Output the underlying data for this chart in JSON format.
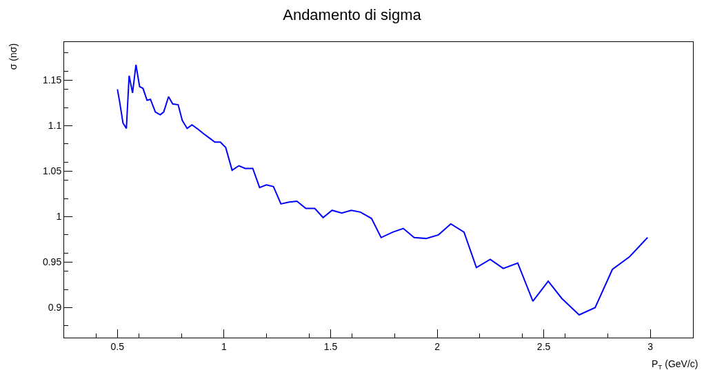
{
  "chart_data": {
    "type": "line",
    "title": "Andamento di sigma",
    "xlabel": "P$_{T}$ (GeV/c)",
    "ylabel": "σ (nσ)",
    "x": [
      0.5,
      0.51,
      0.526,
      0.542,
      0.555,
      0.571,
      0.587,
      0.604,
      0.62,
      0.639,
      0.655,
      0.678,
      0.701,
      0.717,
      0.74,
      0.759,
      0.785,
      0.804,
      0.827,
      0.85,
      0.879,
      0.905,
      0.934,
      0.957,
      0.983,
      1.008,
      1.038,
      1.07,
      1.099,
      1.135,
      1.167,
      1.199,
      1.232,
      1.267,
      1.306,
      1.342,
      1.384,
      1.426,
      1.465,
      1.507,
      1.552,
      1.597,
      1.64,
      1.692,
      1.737,
      1.792,
      1.841,
      1.892,
      1.948,
      2.006,
      2.064,
      2.126,
      2.184,
      2.249,
      2.31,
      2.378,
      2.449,
      2.521,
      2.585,
      2.666,
      2.741,
      2.822,
      2.903,
      2.987
    ],
    "series": [
      {
        "color": "#0000ff",
        "values": [
          1.14,
          1.127,
          1.103,
          1.097,
          1.155,
          1.136,
          1.167,
          1.143,
          1.141,
          1.128,
          1.129,
          1.115,
          1.112,
          1.115,
          1.132,
          1.124,
          1.123,
          1.106,
          1.097,
          1.101,
          1.096,
          1.091,
          1.086,
          1.082,
          1.082,
          1.076,
          1.051,
          1.056,
          1.053,
          1.053,
          1.032,
          1.035,
          1.033,
          1.014,
          1.016,
          1.017,
          1.009,
          1.009,
          0.999,
          1.007,
          1.004,
          1.007,
          1.005,
          0.998,
          0.977,
          0.983,
          0.987,
          0.977,
          0.976,
          0.98,
          0.992,
          0.983,
          0.944,
          0.953,
          0.943,
          0.949,
          0.907,
          0.929,
          0.91,
          0.892,
          0.9,
          0.942,
          0.956,
          0.977
        ]
      }
    ],
    "xlim": [
      0.25,
      3.2
    ],
    "ylim": [
      0.867,
      1.192
    ],
    "xticks": [
      0.5,
      1,
      1.5,
      2,
      2.5,
      3
    ],
    "yticks": [
      0.9,
      0.95,
      1,
      1.05,
      1.1,
      1.15
    ],
    "grid": false,
    "marker": "none",
    "line_style": "solid"
  }
}
